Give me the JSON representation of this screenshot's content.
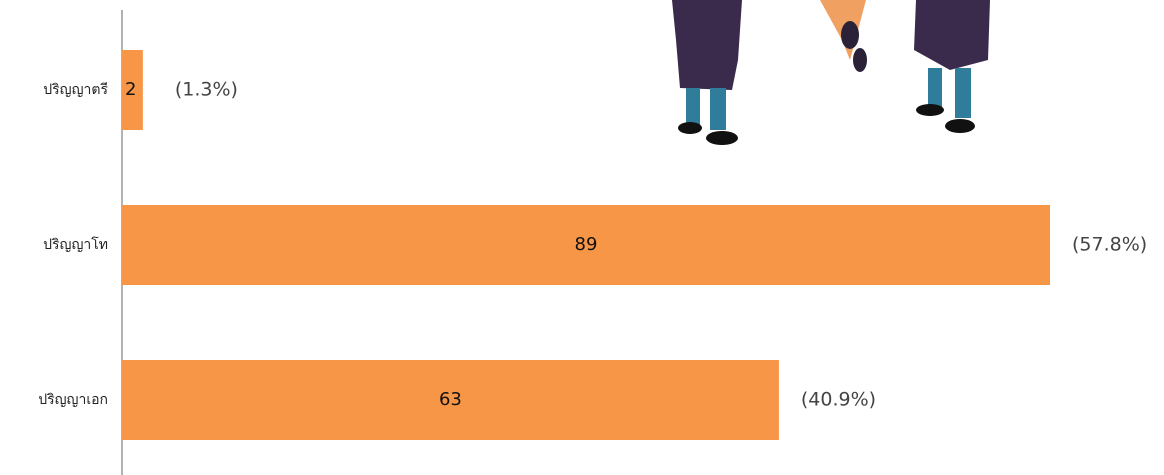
{
  "chart_data": {
    "type": "hbar",
    "categories": [
      "ปริญญาตรี",
      "ปริญญาโท",
      "ปริญญาเอก"
    ],
    "values": [
      2,
      89,
      63
    ],
    "share_labels": [
      "(1.3%)",
      "(57.8%)",
      "(40.9%)"
    ],
    "color": "#f79646"
  }
}
